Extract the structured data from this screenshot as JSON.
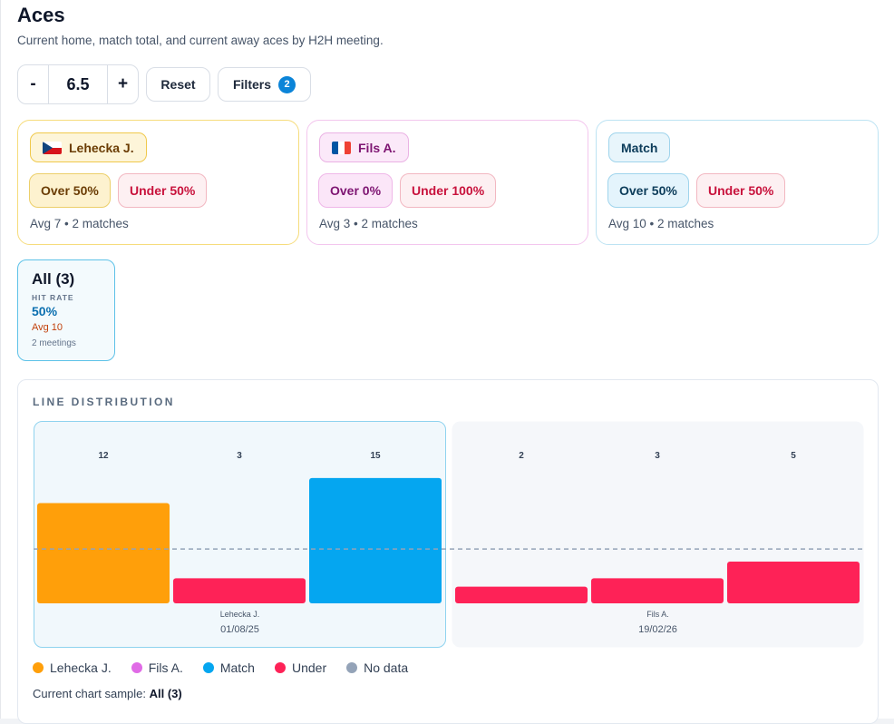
{
  "header": {
    "title": "Aces",
    "subtitle": "Current home, match total, and current away aces by H2H meeting."
  },
  "controls": {
    "minus_label": "-",
    "line_value": "6.5",
    "plus_label": "+",
    "reset_label": "Reset",
    "filters_label": "Filters",
    "filters_count": "2"
  },
  "cards": [
    {
      "name": "Lehecka J.",
      "flag": "cz-flag-icon",
      "over": "Over 50%",
      "under": "Under 50%",
      "avg": "Avg 7 • 2 matches"
    },
    {
      "name": "Fils A.",
      "flag": "fr-flag-icon",
      "over": "Over 0%",
      "under": "Under 100%",
      "avg": "Avg 3 • 2 matches"
    },
    {
      "name": "Match",
      "over": "Over 50%",
      "under": "Under 50%",
      "avg": "Avg 10 • 2 matches"
    }
  ],
  "sample": {
    "title": "All (3)",
    "rate_label": "HIT RATE",
    "rate": "50%",
    "avg": "Avg 10",
    "meetings": "2 meetings"
  },
  "distribution": {
    "title": "LINE DISTRIBUTION",
    "current_sample_label": "Current chart sample:",
    "current_sample_value": "All (3)"
  },
  "colors": {
    "home": "#ff9f0a",
    "away": "#e06be6",
    "match": "#05a6f0",
    "under": "#fe2257",
    "no_data": "#94a3b8",
    "line": "#94a3b8",
    "selected_group_bg": "#f1f8fc",
    "group_bg": "#f5f7fa"
  },
  "chart_data": {
    "type": "bar",
    "line": 6.5,
    "ylim": [
      0,
      16.5
    ],
    "groups": [
      {
        "player_label": "Lehecka J.",
        "date": "01/08/25",
        "selected": true,
        "bars": [
          {
            "series": "Lehecka J.",
            "value": 12,
            "status": "Lehecka J."
          },
          {
            "series": "Fils A.",
            "value": 3,
            "status": "Under"
          },
          {
            "series": "Match",
            "value": 15,
            "status": "Match"
          }
        ]
      },
      {
        "player_label": "Fils A.",
        "date": "19/02/26",
        "selected": false,
        "bars": [
          {
            "series": "Lehecka J.",
            "value": 2,
            "status": "Under"
          },
          {
            "series": "Fils A.",
            "value": 3,
            "status": "Under"
          },
          {
            "series": "Match",
            "value": 5,
            "status": "Under"
          }
        ]
      }
    ],
    "legend": [
      {
        "label": "Lehecka J.",
        "color": "#ff9f0a"
      },
      {
        "label": "Fils A.",
        "color": "#e06be6"
      },
      {
        "label": "Match",
        "color": "#05a6f0"
      },
      {
        "label": "Under",
        "color": "#fe2257"
      },
      {
        "label": "No data",
        "color": "#94a3b8"
      }
    ]
  }
}
